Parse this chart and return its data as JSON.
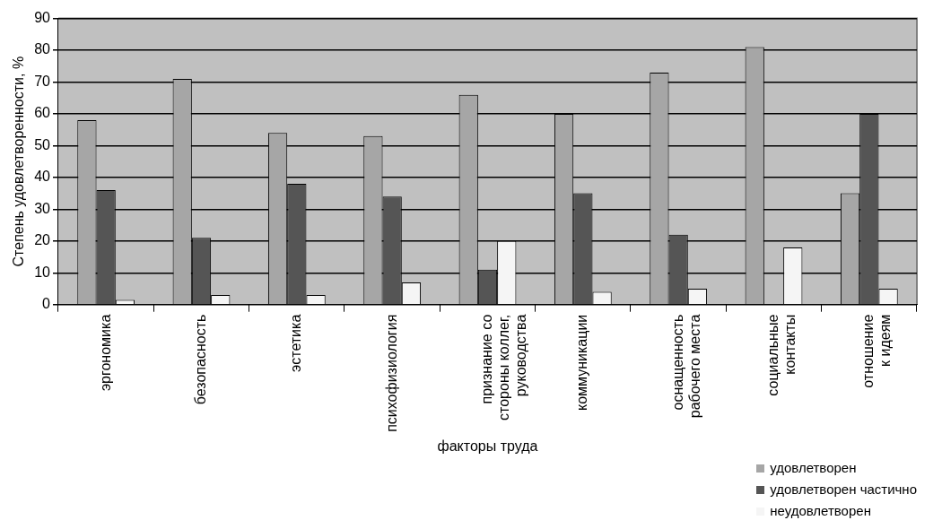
{
  "chart_data": {
    "type": "bar",
    "xlabel": "факторы труда",
    "ylabel": "Степень удовлетворенности, %",
    "categories": [
      "эргономика",
      "безопасность",
      "эстетика",
      "психофизиология",
      "признание со\nстороны коллег,\nруководства",
      "коммуникации",
      "оснащенность\nрабочего места",
      "социальные\nконтакты",
      "отношение\nк идеям"
    ],
    "series": [
      {
        "name": "удовлетворен",
        "color": "#a6a6a6",
        "values": [
          58,
          71,
          54,
          53,
          66,
          60,
          73,
          81,
          35
        ]
      },
      {
        "name": "удовлетворен частично",
        "color": "#555555",
        "values": [
          36,
          21,
          38,
          34,
          11,
          35,
          22,
          0,
          60
        ]
      },
      {
        "name": "неудовлетворен",
        "color": "#f5f5f5",
        "values": [
          1.5,
          3,
          3,
          7,
          20,
          4,
          5,
          18,
          5
        ]
      }
    ],
    "ylim": [
      0,
      90
    ],
    "yticks": [
      0,
      10,
      20,
      30,
      40,
      50,
      60,
      70,
      80,
      90
    ],
    "grid": "y",
    "legend": "bottom right"
  }
}
